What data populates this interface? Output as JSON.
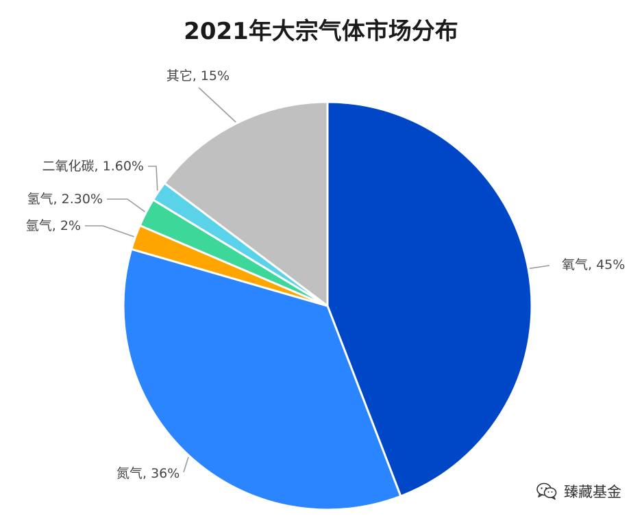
{
  "chart_data": {
    "type": "pie",
    "title": "2021年大宗气体市场分布",
    "slices": [
      {
        "name": "氧气",
        "value": 45,
        "label": "氧气, 45%",
        "color": "#0047c8"
      },
      {
        "name": "氮气",
        "value": 36,
        "label": "氮气, 36%",
        "color": "#2a85ff"
      },
      {
        "name": "氩气",
        "value": 2,
        "label": "氩气, 2%",
        "color": "#ffa500"
      },
      {
        "name": "氢气",
        "value": 2.3,
        "label": "氢气, 2.30%",
        "color": "#3dd79a"
      },
      {
        "name": "二氧化碳",
        "value": 1.6,
        "label": "二氧化碳, 1.60%",
        "color": "#5ad2ea"
      },
      {
        "name": "其它",
        "value": 15,
        "label": "其它, 15%",
        "color": "#c0c0c0"
      }
    ],
    "legend": "none"
  },
  "watermark": {
    "text": "臻藏基金",
    "icon": "wechat-icon"
  }
}
